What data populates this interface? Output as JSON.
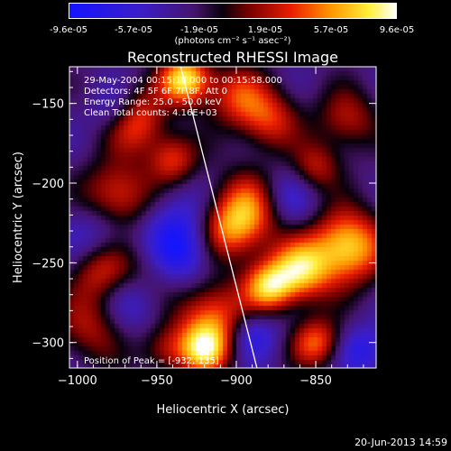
{
  "colorbar": {
    "tick_labels": [
      "-9.6e-05",
      "-5.7e-05",
      "-1.9e-05",
      "1.9e-05",
      "5.7e-05",
      "9.6e-05"
    ],
    "unit_label": "(photons cm⁻² s⁻¹ asec⁻²)",
    "range": [
      -9.6e-05,
      9.6e-05
    ]
  },
  "chart_data": {
    "type": "heatmap",
    "title": "Reconstructed RHESSI Image",
    "xlabel": "Heliocentric X (arcsec)",
    "ylabel": "Heliocentric Y (arcsec)",
    "xlim": [
      -1005,
      -812
    ],
    "ylim": [
      -316,
      -127
    ],
    "xticks": [
      -1000,
      -950,
      -900,
      -850
    ],
    "yticks": [
      -150,
      -200,
      -250,
      -300
    ],
    "colormap": "blue-black-red-yellow-white",
    "annotations": {
      "time_range": "29-May-2004 00:15:18.000 to 00:15:58.000",
      "detectors": "Detectors: 4F 5F 6F 7F 8F, Att 0",
      "energy": "Energy Range: 25.0 - 50.0 keV",
      "clean": "Clean    Total counts: 4.16E+03",
      "peak": "Position of Peak = [-932,-135]"
    },
    "limb_line": {
      "x": [
        -935,
        -887
      ],
      "y": [
        -127,
        -316
      ]
    },
    "peak_position": [
      -932,
      -135
    ],
    "sources": [
      {
        "x": -932,
        "y": -135,
        "intensity": 1.0
      },
      {
        "x": -965,
        "y": -160,
        "intensity": 0.75
      },
      {
        "x": -975,
        "y": -210,
        "intensity": 0.7
      },
      {
        "x": -940,
        "y": -185,
        "intensity": 0.55
      },
      {
        "x": -880,
        "y": -160,
        "intensity": 0.55
      },
      {
        "x": -890,
        "y": -215,
        "intensity": 0.7
      },
      {
        "x": -850,
        "y": -190,
        "intensity": 0.45
      },
      {
        "x": -860,
        "y": -255,
        "intensity": 0.85
      },
      {
        "x": -830,
        "y": -240,
        "intensity": 0.95
      },
      {
        "x": -880,
        "y": -265,
        "intensity": 0.8
      },
      {
        "x": -905,
        "y": -230,
        "intensity": 0.55
      },
      {
        "x": -915,
        "y": -285,
        "intensity": 0.7
      },
      {
        "x": -920,
        "y": -305,
        "intensity": 0.75
      },
      {
        "x": -985,
        "y": -255,
        "intensity": 0.55
      },
      {
        "x": -960,
        "y": -260,
        "intensity": 0.5
      },
      {
        "x": -850,
        "y": -300,
        "intensity": 0.65
      },
      {
        "x": -830,
        "y": -160,
        "intensity": 0.45
      },
      {
        "x": -990,
        "y": -290,
        "intensity": 0.45
      },
      {
        "x": -945,
        "y": -305,
        "intensity": 0.4
      },
      {
        "x": -900,
        "y": -145,
        "intensity": 0.5
      }
    ],
    "minima": [
      {
        "x": -965,
        "y": -270,
        "intensity": -0.6
      },
      {
        "x": -975,
        "y": -155,
        "intensity": -0.45
      },
      {
        "x": -935,
        "y": -245,
        "intensity": -0.45
      },
      {
        "x": -985,
        "y": -230,
        "intensity": -0.4
      },
      {
        "x": -890,
        "y": -295,
        "intensity": -0.45
      },
      {
        "x": -870,
        "y": -210,
        "intensity": -0.4
      },
      {
        "x": -940,
        "y": -225,
        "intensity": -0.35
      },
      {
        "x": -820,
        "y": -305,
        "intensity": -0.4
      }
    ]
  },
  "footer": {
    "date": "20-Jun-2013 14:59"
  }
}
